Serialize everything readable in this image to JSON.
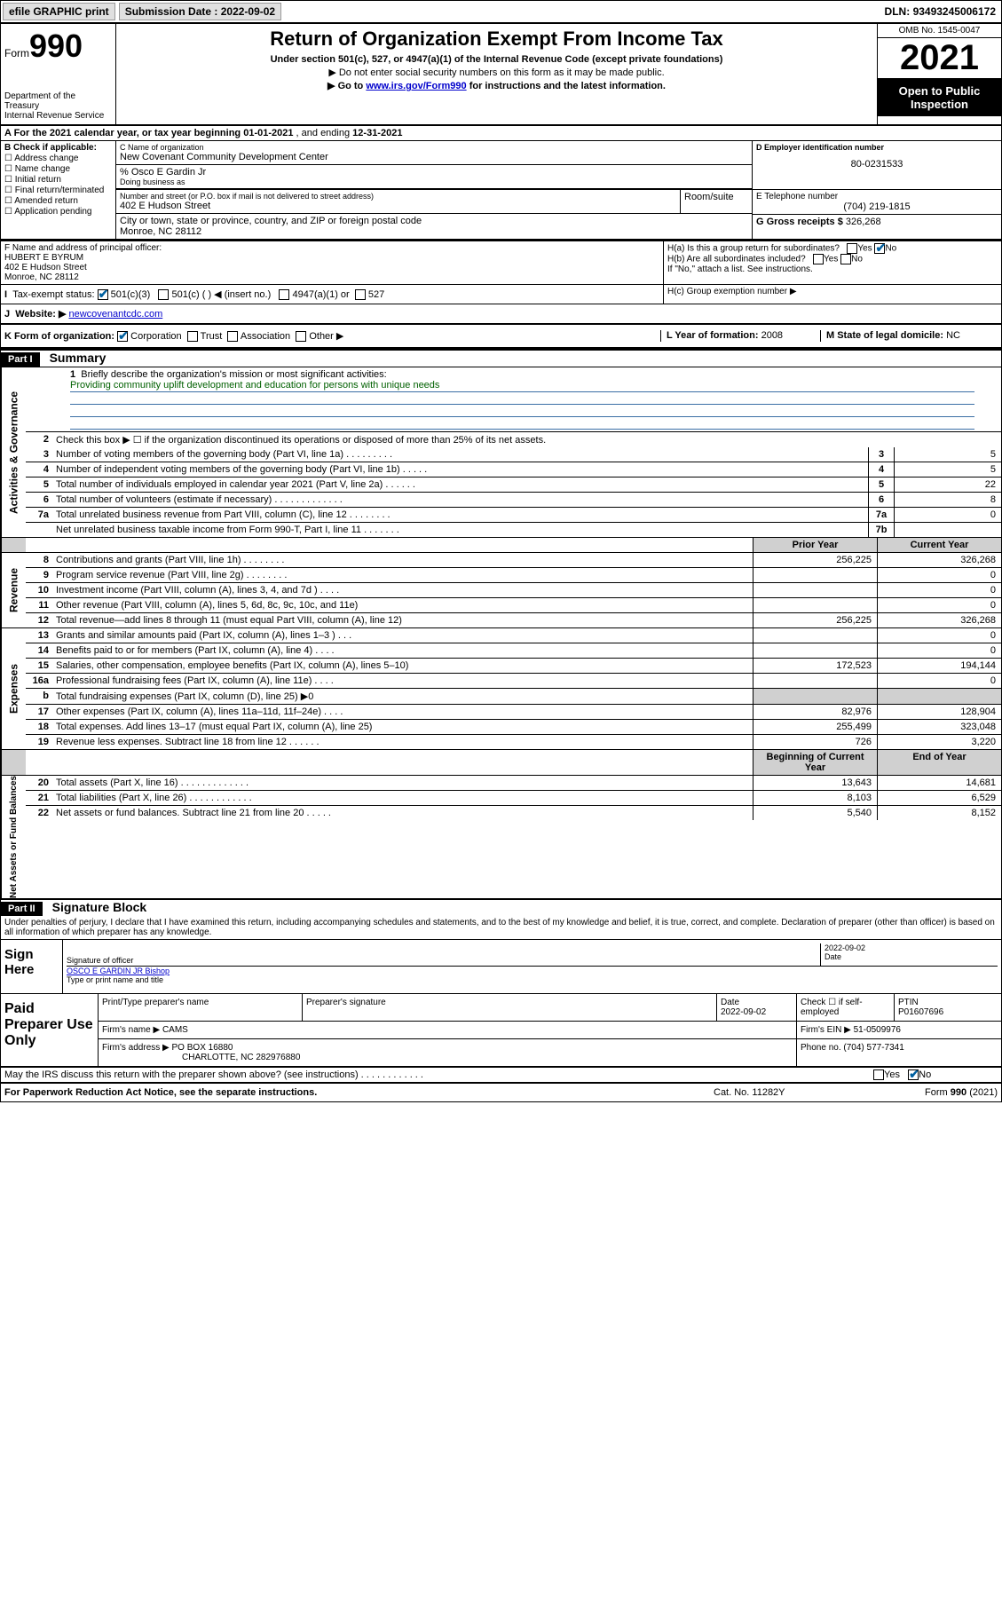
{
  "topbar": {
    "efile": "efile GRAPHIC print",
    "submission_label": "Submission Date :",
    "submission_date": "2022-09-02",
    "dln_label": "DLN:",
    "dln": "93493245006172"
  },
  "header": {
    "form_word": "Form",
    "form_num": "990",
    "dept": "Department of the Treasury\nInternal Revenue Service",
    "title": "Return of Organization Exempt From Income Tax",
    "sub1": "Under section 501(c), 527, or 4947(a)(1) of the Internal Revenue Code (except private foundations)",
    "sub2": "▶ Do not enter social security numbers on this form as it may be made public.",
    "sub3_pre": "▶ Go to ",
    "sub3_link": "www.irs.gov/Form990",
    "sub3_post": " for instructions and the latest information.",
    "omb": "OMB No. 1545-0047",
    "year": "2021",
    "open": "Open to Public Inspection"
  },
  "rowA": {
    "text": "A For the 2021 calendar year, or tax year beginning ",
    "begin": "01-01-2021",
    "mid": " , and ending ",
    "end": "12-31-2021"
  },
  "sectionB": {
    "label": "B Check if applicable:",
    "opts": [
      "Address change",
      "Name change",
      "Initial return",
      "Final return/terminated",
      "Amended return",
      "Application pending"
    ]
  },
  "sectionC": {
    "name_hint": "C Name of organization",
    "name": "New Covenant Community Development Center",
    "care_hint": "% Osco E Gardin Jr",
    "dba_hint": "Doing business as",
    "addr_hint": "Number and street (or P.O. box if mail is not delivered to street address)",
    "addr": "402 E Hudson Street",
    "room_hint": "Room/suite",
    "city_hint": "City or town, state or province, country, and ZIP or foreign postal code",
    "city": "Monroe, NC  28112"
  },
  "sectionD": {
    "hint": "D Employer identification number",
    "ein": "80-0231533"
  },
  "sectionE": {
    "hint": "E Telephone number",
    "tel": "(704) 219-1815"
  },
  "sectionG": {
    "label": "G Gross receipts $",
    "val": "326,268"
  },
  "sectionF": {
    "hint": "F Name and address of principal officer:",
    "name": "HUBERT E BYRUM",
    "addr1": "402 E Hudson Street",
    "addr2": "Monroe, NC  28112"
  },
  "sectionH": {
    "ha": "H(a)  Is this a group return for subordinates?",
    "ha_yes": "Yes",
    "ha_no": "No",
    "hb": "H(b)  Are all subordinates included?",
    "hb_note": "If \"No,\" attach a list. See instructions.",
    "hc": "H(c)  Group exemption number ▶"
  },
  "sectionI": {
    "label": "Tax-exempt status:",
    "c3": "501(c)(3)",
    "c": "501(c) (  ) ◀ (insert no.)",
    "a1": "4947(a)(1) or",
    "s527": "527"
  },
  "sectionJ": {
    "label": "Website: ▶",
    "url": "newcovenantcdc.com"
  },
  "sectionK": {
    "label": "K Form of organization:",
    "corp": "Corporation",
    "trust": "Trust",
    "assoc": "Association",
    "other": "Other ▶"
  },
  "sectionL": {
    "label": "L Year of formation:",
    "val": "2008"
  },
  "sectionM": {
    "label": "M State of legal domicile:",
    "val": "NC"
  },
  "partI": {
    "tag": "Part I",
    "title": "Summary",
    "q1": "Briefly describe the organization's mission or most significant activities:",
    "mission": "Providing community uplift development and education for persons with unique needs",
    "q2": "Check this box ▶ ☐  if the organization discontinued its operations or disposed of more than 25% of its net assets.",
    "sidebars": {
      "s1": "Activities & Governance",
      "s2": "Revenue",
      "s3": "Expenses",
      "s4": "Net Assets or Fund Balances"
    },
    "lines_gov": [
      {
        "n": "3",
        "d": "Number of voting members of the governing body (Part VI, line 1a)  .    .    .    .    .    .    .    .    .",
        "box": "3",
        "v": "5"
      },
      {
        "n": "4",
        "d": "Number of independent voting members of the governing body (Part VI, line 1b)   .    .    .    .    .",
        "box": "4",
        "v": "5"
      },
      {
        "n": "5",
        "d": "Total number of individuals employed in calendar year 2021 (Part V, line 2a)   .    .    .    .    .    .",
        "box": "5",
        "v": "22"
      },
      {
        "n": "6",
        "d": "Total number of volunteers (estimate if necessary)   .    .    .    .    .    .    .    .    .    .    .    .    .",
        "box": "6",
        "v": "8"
      },
      {
        "n": "7a",
        "d": "Total unrelated business revenue from Part VIII, column (C), line 12   .    .    .    .    .    .    .    .",
        "box": "7a",
        "v": "0"
      },
      {
        "n": "",
        "d": "Net unrelated business taxable income from Form 990-T, Part I, line 11   .    .    .    .    .    .    .",
        "box": "7b",
        "v": ""
      }
    ],
    "col_headers": {
      "prior": "Prior Year",
      "current": "Current Year"
    },
    "lines_rev": [
      {
        "n": "8",
        "d": "Contributions and grants (Part VIII, line 1h)   .    .    .    .    .    .    .    .",
        "py": "256,225",
        "cy": "326,268"
      },
      {
        "n": "9",
        "d": "Program service revenue (Part VIII, line 2g)   .    .    .    .    .    .    .    .",
        "py": "",
        "cy": "0"
      },
      {
        "n": "10",
        "d": "Investment income (Part VIII, column (A), lines 3, 4, and 7d )   .    .    .    .",
        "py": "",
        "cy": "0"
      },
      {
        "n": "11",
        "d": "Other revenue (Part VIII, column (A), lines 5, 6d, 8c, 9c, 10c, and 11e)",
        "py": "",
        "cy": "0"
      },
      {
        "n": "12",
        "d": "Total revenue—add lines 8 through 11 (must equal Part VIII, column (A), line 12)",
        "py": "256,225",
        "cy": "326,268"
      }
    ],
    "lines_exp": [
      {
        "n": "13",
        "d": "Grants and similar amounts paid (Part IX, column (A), lines 1–3 )   .    .    .",
        "py": "",
        "cy": "0"
      },
      {
        "n": "14",
        "d": "Benefits paid to or for members (Part IX, column (A), line 4)   .    .    .    .",
        "py": "",
        "cy": "0"
      },
      {
        "n": "15",
        "d": "Salaries, other compensation, employee benefits (Part IX, column (A), lines 5–10)",
        "py": "172,523",
        "cy": "194,144"
      },
      {
        "n": "16a",
        "d": "Professional fundraising fees (Part IX, column (A), line 11e)   .    .    .    .",
        "py": "",
        "cy": "0"
      },
      {
        "n": "b",
        "d": "Total fundraising expenses (Part IX, column (D), line 25) ▶0",
        "py": "GREY",
        "cy": "GREY"
      },
      {
        "n": "17",
        "d": "Other expenses (Part IX, column (A), lines 11a–11d, 11f–24e)   .    .    .    .",
        "py": "82,976",
        "cy": "128,904"
      },
      {
        "n": "18",
        "d": "Total expenses. Add lines 13–17 (must equal Part IX, column (A), line 25)",
        "py": "255,499",
        "cy": "323,048"
      },
      {
        "n": "19",
        "d": "Revenue less expenses. Subtract line 18 from line 12   .    .    .    .    .    .",
        "py": "726",
        "cy": "3,220"
      }
    ],
    "col_headers2": {
      "begin": "Beginning of Current Year",
      "end": "End of Year"
    },
    "lines_net": [
      {
        "n": "20",
        "d": "Total assets (Part X, line 16)   .    .    .    .    .    .    .    .    .    .    .    .    .",
        "py": "13,643",
        "cy": "14,681"
      },
      {
        "n": "21",
        "d": "Total liabilities (Part X, line 26)   .    .    .    .    .    .    .    .    .    .    .    .",
        "py": "8,103",
        "cy": "6,529"
      },
      {
        "n": "22",
        "d": "Net assets or fund balances. Subtract line 21 from line 20   .    .    .    .    .",
        "py": "5,540",
        "cy": "8,152"
      }
    ]
  },
  "partII": {
    "tag": "Part II",
    "title": "Signature Block",
    "declaration": "Under penalties of perjury, I declare that I have examined this return, including accompanying schedules and statements, and to the best of my knowledge and belief, it is true, correct, and complete. Declaration of preparer (other than officer) is based on all information of which preparer has any knowledge.",
    "sign_here": "Sign Here",
    "sig_officer": "Signature of officer",
    "sig_date_label": "Date",
    "sig_date": "2022-09-02",
    "officer_name": "OSCO E GARDIN JR Bishop",
    "type_name": "Type or print name and title",
    "paid_prep": "Paid Preparer Use Only",
    "prep_cols": {
      "name": "Print/Type preparer's name",
      "sig": "Preparer's signature",
      "date_label": "Date",
      "date": "2022-09-02",
      "check": "Check ☐ if self-employed",
      "ptin_label": "PTIN",
      "ptin": "P01607696"
    },
    "firm_name_label": "Firm's name    ▶",
    "firm_name": "CAMS",
    "firm_ein_label": "Firm's EIN ▶",
    "firm_ein": "51-0509976",
    "firm_addr_label": "Firm's address ▶",
    "firm_addr1": "PO BOX 16880",
    "firm_addr2": "CHARLOTTE, NC  282976880",
    "firm_phone_label": "Phone no.",
    "firm_phone": "(704) 577-7341",
    "may_irs": "May the IRS discuss this return with the preparer shown above? (see instructions)   .    .    .    .    .    .    .    .    .    .    .    .",
    "may_yes": "Yes",
    "may_no": "No"
  },
  "footer": {
    "pra": "For Paperwork Reduction Act Notice, see the separate instructions.",
    "cat": "Cat. No. 11282Y",
    "form": "Form 990 (2021)"
  },
  "colors": {
    "link": "#0000cc",
    "mission_text": "#006000",
    "rule": "#3a6ea5",
    "grey": "#d0d0d0",
    "check": "#0060a0"
  }
}
